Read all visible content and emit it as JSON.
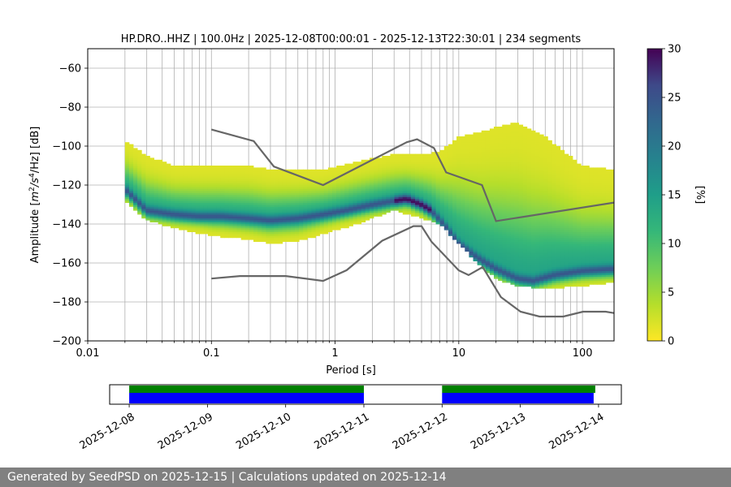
{
  "chart_data": [
    {
      "type": "heatmap",
      "title": "HP.DRO..HHZ | 100.0Hz | 2025-12-08T00:00:01 - 2025-12-13T22:30:01 | 234 segments",
      "xlabel": "Period [s]",
      "ylabel_parts": {
        "pre": "Amplitude [",
        "m": "m",
        "m_exp": "2",
        "s": "/s",
        "s_exp": "4",
        "post": "/Hz] [dB]"
      },
      "x_scale": "log",
      "xlim": [
        0.01,
        180
      ],
      "ylim": [
        -200,
        -50
      ],
      "x_ticks": [
        {
          "value": 0.01,
          "label": "0.01"
        },
        {
          "value": 0.1,
          "label": "0.1"
        },
        {
          "value": 1,
          "label": "1"
        },
        {
          "value": 10,
          "label": "10"
        },
        {
          "value": 100,
          "label": "100"
        }
      ],
      "y_ticks": [
        {
          "value": -200,
          "label": "−200"
        },
        {
          "value": -180,
          "label": "−180"
        },
        {
          "value": -160,
          "label": "−160"
        },
        {
          "value": -140,
          "label": "−140"
        },
        {
          "value": -120,
          "label": "−120"
        },
        {
          "value": -100,
          "label": "−100"
        },
        {
          "value": -80,
          "label": "−80"
        },
        {
          "value": -60,
          "label": "−60"
        }
      ],
      "grid": "vertical lines at every log period tick, horizontal lines at every 20 dB",
      "colorbar": {
        "label": "[%]",
        "range": [
          0,
          30
        ],
        "ticks": [
          {
            "value": 0,
            "label": "0"
          },
          {
            "value": 5,
            "label": "5"
          },
          {
            "value": 10,
            "label": "10"
          },
          {
            "value": 15,
            "label": "15"
          },
          {
            "value": 20,
            "label": "20"
          },
          {
            "value": 25,
            "label": "25"
          },
          {
            "value": 30,
            "label": "30"
          }
        ],
        "colormap": "viridis (reversed, yellow at 0)"
      },
      "mode_line": {
        "x": [
          0.02,
          0.025,
          0.03,
          0.05,
          0.08,
          0.12,
          0.2,
          0.3,
          0.5,
          0.8,
          1.2,
          2,
          3,
          3.8,
          5,
          6,
          8,
          10,
          14,
          20,
          30,
          40,
          60,
          100,
          180
        ],
        "y": [
          -122,
          -128,
          -133,
          -135,
          -136,
          -136,
          -137,
          -138,
          -137,
          -135,
          -133,
          -130,
          -128,
          -127,
          -130,
          -133,
          -142,
          -150,
          -157,
          -163,
          -168,
          -169,
          -166,
          -164,
          -163
        ]
      },
      "upper_envelope": {
        "x": [
          0.02,
          0.03,
          0.05,
          0.1,
          0.2,
          0.3,
          0.5,
          0.8,
          1.5,
          3,
          5,
          7,
          10,
          15,
          20,
          30,
          50,
          100,
          180
        ],
        "y": [
          -97,
          -105,
          -110,
          -110,
          -110,
          -112,
          -112,
          -112,
          -108,
          -104,
          -104,
          -103,
          -95,
          -93,
          -90,
          -88,
          -95,
          -110,
          -112
        ]
      },
      "lower_envelope": {
        "x": [
          0.02,
          0.03,
          0.05,
          0.1,
          0.2,
          0.3,
          0.5,
          0.8,
          1.5,
          3,
          5,
          7,
          10,
          15,
          20,
          30,
          50,
          100,
          180
        ],
        "y": [
          -128,
          -138,
          -142,
          -146,
          -148,
          -150,
          -149,
          -145,
          -140,
          -133,
          -137,
          -140,
          -150,
          -162,
          -168,
          -172,
          -173,
          -172,
          -170
        ]
      },
      "nhnm": {
        "x": [
          0.1,
          0.22,
          0.32,
          0.8,
          3.8,
          4.6,
          6.3,
          7.9,
          15.4,
          20,
          180
        ],
        "y": [
          -91.5,
          -97.4,
          -110.5,
          -120,
          -98,
          -96.5,
          -101,
          -113.5,
          -120,
          -138.5,
          -129
        ]
      },
      "nlnm": {
        "x": [
          0.1,
          0.17,
          0.4,
          0.8,
          1.24,
          2.4,
          4.3,
          5,
          6,
          10,
          12,
          15.6,
          21.9,
          31.6,
          45,
          70,
          101,
          154,
          180
        ],
        "y": [
          -168,
          -166.7,
          -166.7,
          -169.2,
          -163.7,
          -148.6,
          -141.1,
          -141.1,
          -149,
          -163.8,
          -166.2,
          -162.1,
          -177.5,
          -185,
          -187.5,
          -187.5,
          -185,
          -185,
          -185.7
        ]
      }
    },
    {
      "type": "timeline",
      "x_tick_labels": [
        "2025-12-08",
        "2025-12-09",
        "2025-12-10",
        "2025-12-11",
        "2025-12-12",
        "2025-12-13",
        "2025-12-14"
      ],
      "xlim": [
        "2025-12-07T18:00",
        "2025-12-14T07:00"
      ],
      "green_segments": [
        [
          "2025-12-08T00:00",
          "2025-12-11T00:00"
        ],
        [
          "2025-12-12T00:00",
          "2025-12-13T23:00"
        ]
      ],
      "blue_segments": [
        [
          "2025-12-08T00:00",
          "2025-12-11T00:00"
        ],
        [
          "2025-12-12T00:00",
          "2025-12-13T22:30"
        ]
      ],
      "colors": {
        "green": "#008000",
        "blue": "#0000ff"
      }
    }
  ],
  "footer": {
    "text": "Generated by SeedPSD on 2025-12-15 | Calculations updated on 2025-12-14"
  }
}
